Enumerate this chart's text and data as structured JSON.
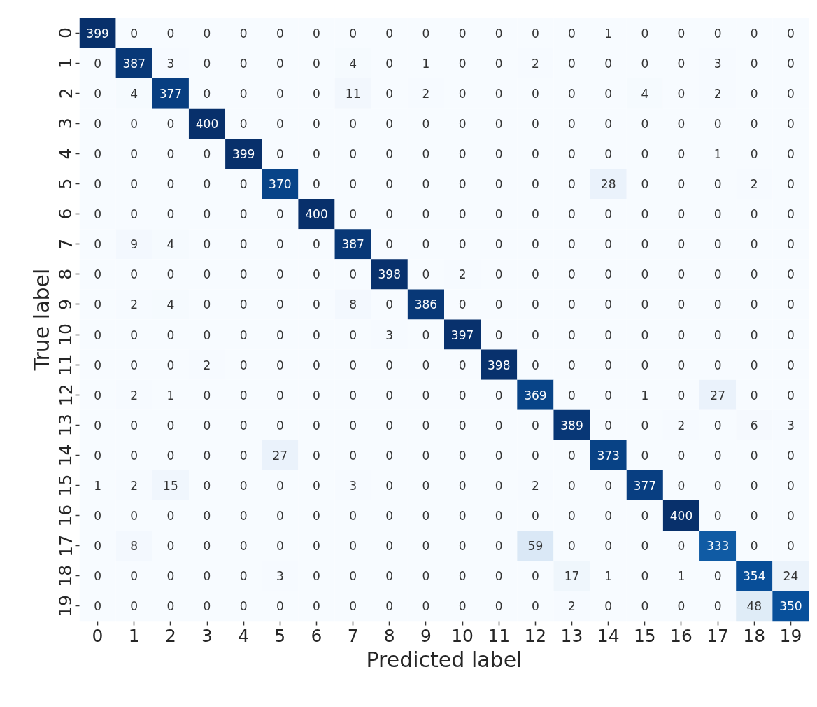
{
  "chart_data": {
    "type": "heatmap",
    "xlabel": "Predicted label",
    "ylabel": "True label",
    "categories": [
      "0",
      "1",
      "2",
      "3",
      "4",
      "5",
      "6",
      "7",
      "8",
      "9",
      "10",
      "11",
      "12",
      "13",
      "14",
      "15",
      "16",
      "17",
      "18",
      "19"
    ],
    "y_categories": [
      "0",
      "1",
      "2",
      "3",
      "4",
      "5",
      "6",
      "7",
      "8",
      "9",
      "10",
      "11",
      "12",
      "13",
      "14",
      "15",
      "16",
      "17",
      "18",
      "19"
    ],
    "cells": [
      [
        399,
        0,
        0,
        0,
        0,
        0,
        0,
        0,
        0,
        0,
        0,
        0,
        0,
        0,
        1,
        0,
        0,
        0,
        0,
        0
      ],
      [
        0,
        387,
        3,
        0,
        0,
        0,
        0,
        4,
        0,
        1,
        0,
        0,
        2,
        0,
        0,
        0,
        0,
        3,
        0,
        0
      ],
      [
        0,
        4,
        377,
        0,
        0,
        0,
        0,
        11,
        0,
        2,
        0,
        0,
        0,
        0,
        0,
        4,
        0,
        2,
        0,
        0
      ],
      [
        0,
        0,
        0,
        400,
        0,
        0,
        0,
        0,
        0,
        0,
        0,
        0,
        0,
        0,
        0,
        0,
        0,
        0,
        0,
        0
      ],
      [
        0,
        0,
        0,
        0,
        399,
        0,
        0,
        0,
        0,
        0,
        0,
        0,
        0,
        0,
        0,
        0,
        0,
        1,
        0,
        0
      ],
      [
        0,
        0,
        0,
        0,
        0,
        370,
        0,
        0,
        0,
        0,
        0,
        0,
        0,
        0,
        28,
        0,
        0,
        0,
        2,
        0
      ],
      [
        0,
        0,
        0,
        0,
        0,
        0,
        400,
        0,
        0,
        0,
        0,
        0,
        0,
        0,
        0,
        0,
        0,
        0,
        0,
        0
      ],
      [
        0,
        9,
        4,
        0,
        0,
        0,
        0,
        387,
        0,
        0,
        0,
        0,
        0,
        0,
        0,
        0,
        0,
        0,
        0,
        0
      ],
      [
        0,
        0,
        0,
        0,
        0,
        0,
        0,
        0,
        398,
        0,
        2,
        0,
        0,
        0,
        0,
        0,
        0,
        0,
        0,
        0
      ],
      [
        0,
        2,
        4,
        0,
        0,
        0,
        0,
        8,
        0,
        386,
        0,
        0,
        0,
        0,
        0,
        0,
        0,
        0,
        0,
        0
      ],
      [
        0,
        0,
        0,
        0,
        0,
        0,
        0,
        0,
        3,
        0,
        397,
        0,
        0,
        0,
        0,
        0,
        0,
        0,
        0,
        0
      ],
      [
        0,
        0,
        0,
        2,
        0,
        0,
        0,
        0,
        0,
        0,
        0,
        398,
        0,
        0,
        0,
        0,
        0,
        0,
        0,
        0
      ],
      [
        0,
        2,
        1,
        0,
        0,
        0,
        0,
        0,
        0,
        0,
        0,
        0,
        369,
        0,
        0,
        1,
        0,
        27,
        0,
        0
      ],
      [
        0,
        0,
        0,
        0,
        0,
        0,
        0,
        0,
        0,
        0,
        0,
        0,
        0,
        389,
        0,
        0,
        2,
        0,
        6,
        3
      ],
      [
        0,
        0,
        0,
        0,
        0,
        27,
        0,
        0,
        0,
        0,
        0,
        0,
        0,
        0,
        373,
        0,
        0,
        0,
        0,
        0
      ],
      [
        1,
        2,
        15,
        0,
        0,
        0,
        0,
        3,
        0,
        0,
        0,
        0,
        2,
        0,
        0,
        377,
        0,
        0,
        0,
        0
      ],
      [
        0,
        0,
        0,
        0,
        0,
        0,
        0,
        0,
        0,
        0,
        0,
        0,
        0,
        0,
        0,
        0,
        400,
        0,
        0,
        0
      ],
      [
        0,
        8,
        0,
        0,
        0,
        0,
        0,
        0,
        0,
        0,
        0,
        0,
        59,
        0,
        0,
        0,
        0,
        333,
        0,
        0
      ],
      [
        0,
        0,
        0,
        0,
        0,
        3,
        0,
        0,
        0,
        0,
        0,
        0,
        0,
        17,
        1,
        0,
        1,
        0,
        354,
        24
      ],
      [
        0,
        0,
        0,
        0,
        0,
        0,
        0,
        0,
        0,
        0,
        0,
        0,
        0,
        2,
        0,
        0,
        0,
        0,
        48,
        350
      ]
    ],
    "data_labels": true
  }
}
